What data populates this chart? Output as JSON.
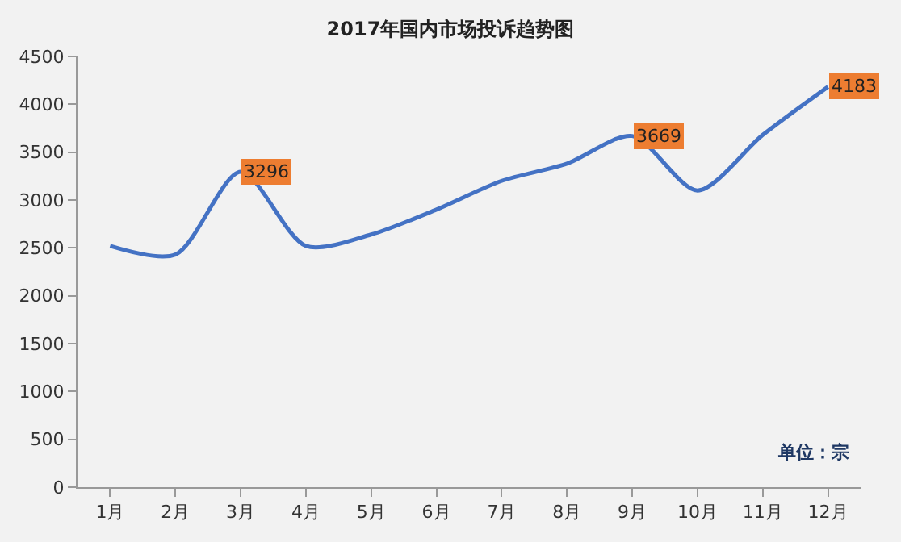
{
  "chart_data": {
    "type": "line",
    "title": "2017年国内市场投诉趋势图",
    "categories": [
      "1月",
      "2月",
      "3月",
      "4月",
      "5月",
      "6月",
      "7月",
      "8月",
      "9月",
      "10月",
      "11月",
      "12月"
    ],
    "series": [
      {
        "color": "#4472c4",
        "values": [
          2520,
          2430,
          3296,
          2520,
          2640,
          2900,
          3200,
          3380,
          3669,
          3100,
          3680,
          4183
        ],
        "value_labels": [
          null,
          null,
          "3296",
          null,
          null,
          null,
          null,
          null,
          "3669",
          null,
          null,
          "4183"
        ]
      }
    ],
    "ylim": [
      0,
      4500
    ],
    "yticks": [
      0,
      500,
      1000,
      1500,
      2000,
      2500,
      3000,
      3500,
      4000,
      4500
    ],
    "annotations": [
      "单位：宗"
    ],
    "grid": false,
    "legend": false,
    "marker": "none",
    "line_style": "solid"
  }
}
